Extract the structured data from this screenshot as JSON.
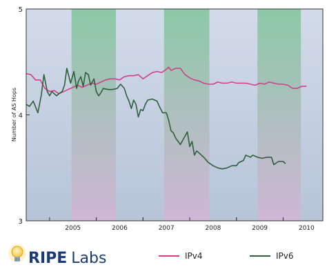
{
  "chart_data": {
    "type": "line",
    "ylabel": "Number of AS Hops",
    "ylim": [
      3,
      5
    ],
    "y_ticks": [
      "5",
      "4",
      "3"
    ],
    "x_ticks": [
      "2005",
      "2006",
      "2007",
      "2008",
      "2009",
      "2010"
    ],
    "xlim": [
      2004.5,
      2010.85
    ],
    "shaded_periods": [
      [
        2005.47,
        2006.42
      ],
      [
        2007.45,
        2008.42
      ],
      [
        2009.45,
        2010.38
      ]
    ],
    "legend_placement": "bottom",
    "series": [
      {
        "name": "IPv4",
        "color": "#d0408a",
        "points": [
          [
            2004.5,
            4.39
          ],
          [
            2004.6,
            4.38
          ],
          [
            2004.7,
            4.33
          ],
          [
            2004.8,
            4.33
          ],
          [
            2004.9,
            4.25
          ],
          [
            2005.0,
            4.22
          ],
          [
            2005.1,
            4.23
          ],
          [
            2005.2,
            4.2
          ],
          [
            2005.3,
            4.22
          ],
          [
            2005.4,
            4.24
          ],
          [
            2005.5,
            4.26
          ],
          [
            2005.6,
            4.28
          ],
          [
            2005.7,
            4.26
          ],
          [
            2005.8,
            4.28
          ],
          [
            2005.9,
            4.3
          ],
          [
            2006.0,
            4.29
          ],
          [
            2006.1,
            4.31
          ],
          [
            2006.2,
            4.33
          ],
          [
            2006.3,
            4.34
          ],
          [
            2006.4,
            4.34
          ],
          [
            2006.5,
            4.33
          ],
          [
            2006.6,
            4.36
          ],
          [
            2006.7,
            4.37
          ],
          [
            2006.8,
            4.37
          ],
          [
            2006.9,
            4.38
          ],
          [
            2007.0,
            4.34
          ],
          [
            2007.1,
            4.37
          ],
          [
            2007.2,
            4.4
          ],
          [
            2007.3,
            4.41
          ],
          [
            2007.4,
            4.4
          ],
          [
            2007.5,
            4.43
          ],
          [
            2007.55,
            4.45
          ],
          [
            2007.6,
            4.42
          ],
          [
            2007.7,
            4.44
          ],
          [
            2007.8,
            4.44
          ],
          [
            2007.9,
            4.38
          ],
          [
            2008.0,
            4.35
          ],
          [
            2008.1,
            4.33
          ],
          [
            2008.2,
            4.32
          ],
          [
            2008.3,
            4.3
          ],
          [
            2008.4,
            4.29
          ],
          [
            2008.5,
            4.29
          ],
          [
            2008.6,
            4.31
          ],
          [
            2008.7,
            4.3
          ],
          [
            2008.8,
            4.3
          ],
          [
            2008.9,
            4.31
          ],
          [
            2009.0,
            4.3
          ],
          [
            2009.1,
            4.3
          ],
          [
            2009.2,
            4.3
          ],
          [
            2009.3,
            4.29
          ],
          [
            2009.4,
            4.28
          ],
          [
            2009.5,
            4.3
          ],
          [
            2009.6,
            4.29
          ],
          [
            2009.7,
            4.31
          ],
          [
            2009.8,
            4.3
          ],
          [
            2009.9,
            4.29
          ],
          [
            2010.0,
            4.29
          ],
          [
            2010.1,
            4.28
          ],
          [
            2010.2,
            4.25
          ],
          [
            2010.3,
            4.25
          ],
          [
            2010.4,
            4.27
          ],
          [
            2010.5,
            4.27
          ]
        ]
      },
      {
        "name": "IPv6",
        "color": "#2f5e3c",
        "points": [
          [
            2004.5,
            4.1
          ],
          [
            2004.57,
            4.08
          ],
          [
            2004.65,
            4.13
          ],
          [
            2004.75,
            4.02
          ],
          [
            2004.82,
            4.18
          ],
          [
            2004.88,
            4.38
          ],
          [
            2004.95,
            4.22
          ],
          [
            2005.0,
            4.18
          ],
          [
            2005.05,
            4.22
          ],
          [
            2005.1,
            4.2
          ],
          [
            2005.15,
            4.18
          ],
          [
            2005.2,
            4.2
          ],
          [
            2005.27,
            4.22
          ],
          [
            2005.32,
            4.28
          ],
          [
            2005.37,
            4.44
          ],
          [
            2005.45,
            4.3
          ],
          [
            2005.52,
            4.41
          ],
          [
            2005.58,
            4.25
          ],
          [
            2005.62,
            4.32
          ],
          [
            2005.67,
            4.36
          ],
          [
            2005.72,
            4.27
          ],
          [
            2005.77,
            4.4
          ],
          [
            2005.83,
            4.38
          ],
          [
            2005.88,
            4.28
          ],
          [
            2005.95,
            4.34
          ],
          [
            2006.0,
            4.22
          ],
          [
            2006.05,
            4.18
          ],
          [
            2006.1,
            4.21
          ],
          [
            2006.15,
            4.25
          ],
          [
            2006.25,
            4.24
          ],
          [
            2006.35,
            4.24
          ],
          [
            2006.45,
            4.25
          ],
          [
            2006.52,
            4.29
          ],
          [
            2006.6,
            4.25
          ],
          [
            2006.65,
            4.18
          ],
          [
            2006.7,
            4.13
          ],
          [
            2006.75,
            4.06
          ],
          [
            2006.8,
            4.14
          ],
          [
            2006.85,
            4.1
          ],
          [
            2006.9,
            3.98
          ],
          [
            2006.95,
            4.05
          ],
          [
            2007.0,
            4.04
          ],
          [
            2007.05,
            4.1
          ],
          [
            2007.1,
            4.14
          ],
          [
            2007.2,
            4.15
          ],
          [
            2007.3,
            4.13
          ],
          [
            2007.35,
            4.08
          ],
          [
            2007.42,
            4.02
          ],
          [
            2007.5,
            4.02
          ],
          [
            2007.55,
            3.95
          ],
          [
            2007.6,
            3.85
          ],
          [
            2007.65,
            3.83
          ],
          [
            2007.7,
            3.78
          ],
          [
            2007.75,
            3.75
          ],
          [
            2007.8,
            3.72
          ],
          [
            2007.85,
            3.76
          ],
          [
            2007.9,
            3.8
          ],
          [
            2007.95,
            3.84
          ],
          [
            2008.0,
            3.7
          ],
          [
            2008.05,
            3.75
          ],
          [
            2008.1,
            3.62
          ],
          [
            2008.15,
            3.66
          ],
          [
            2008.2,
            3.64
          ],
          [
            2008.3,
            3.6
          ],
          [
            2008.4,
            3.55
          ],
          [
            2008.5,
            3.52
          ],
          [
            2008.6,
            3.5
          ],
          [
            2008.7,
            3.49
          ],
          [
            2008.8,
            3.5
          ],
          [
            2008.9,
            3.52
          ],
          [
            2009.0,
            3.52
          ],
          [
            2009.05,
            3.55
          ],
          [
            2009.15,
            3.57
          ],
          [
            2009.2,
            3.62
          ],
          [
            2009.3,
            3.6
          ],
          [
            2009.35,
            3.62
          ],
          [
            2009.45,
            3.6
          ],
          [
            2009.55,
            3.59
          ],
          [
            2009.65,
            3.6
          ],
          [
            2009.75,
            3.6
          ],
          [
            2009.8,
            3.53
          ],
          [
            2009.9,
            3.56
          ],
          [
            2010.0,
            3.56
          ],
          [
            2010.05,
            3.54
          ]
        ]
      }
    ]
  },
  "brand": {
    "ripe": "RIPE",
    "labs": "Labs"
  },
  "colors": {
    "panel_top": "#d2dbe9",
    "panel_bottom": "#b7c4d8",
    "shade_top": "#8cc9a6",
    "shade_bottom": "#cfb6d6",
    "brand_blue": "#1b3a78",
    "bulb_yellow": "#f5c53a"
  },
  "icons": {
    "logo": "lightbulb-icon"
  }
}
